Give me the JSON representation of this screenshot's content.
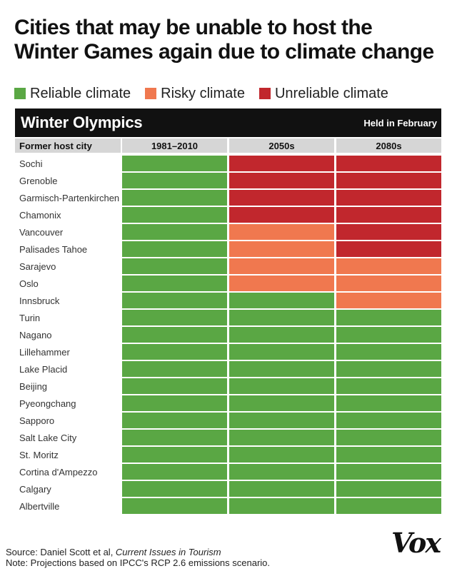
{
  "title_line1": "Cities that may be unable to host the",
  "title_line2": "Winter Games again due to climate change",
  "legend": [
    {
      "label": "Reliable climate",
      "color": "#5aa744"
    },
    {
      "label": "Risky climate",
      "color": "#f0784f"
    },
    {
      "label": "Unreliable climate",
      "color": "#c1272d"
    }
  ],
  "header": {
    "title": "Winter Olympics",
    "note": "Held in February"
  },
  "source_prefix": "Source: Daniel Scott et al, ",
  "source_journal": "Current Issues in Tourism",
  "note": "Note: Projections based on IPCC's RCP 2.6 emissions scenario.",
  "logo": "Vox",
  "chart_data": {
    "type": "heatmap",
    "row_header": "Former host city",
    "columns": [
      "1981–2010",
      "2050s",
      "2080s"
    ],
    "categories": {
      "R": "Reliable climate",
      "K": "Risky climate",
      "U": "Unreliable climate"
    },
    "colors": {
      "R": "#5aa744",
      "K": "#f0784f",
      "U": "#c1272d"
    },
    "rows": [
      {
        "city": "Sochi",
        "values": [
          "R",
          "U",
          "U"
        ]
      },
      {
        "city": "Grenoble",
        "values": [
          "R",
          "U",
          "U"
        ]
      },
      {
        "city": "Garmisch-Partenkirchen",
        "values": [
          "R",
          "U",
          "U"
        ]
      },
      {
        "city": "Chamonix",
        "values": [
          "R",
          "U",
          "U"
        ]
      },
      {
        "city": "Vancouver",
        "values": [
          "R",
          "K",
          "U"
        ]
      },
      {
        "city": "Palisades Tahoe",
        "values": [
          "R",
          "K",
          "U"
        ]
      },
      {
        "city": "Sarajevo",
        "values": [
          "R",
          "K",
          "K"
        ]
      },
      {
        "city": "Oslo",
        "values": [
          "R",
          "K",
          "K"
        ]
      },
      {
        "city": "Innsbruck",
        "values": [
          "R",
          "R",
          "K"
        ]
      },
      {
        "city": "Turin",
        "values": [
          "R",
          "R",
          "R"
        ]
      },
      {
        "city": "Nagano",
        "values": [
          "R",
          "R",
          "R"
        ]
      },
      {
        "city": "Lillehammer",
        "values": [
          "R",
          "R",
          "R"
        ]
      },
      {
        "city": "Lake Placid",
        "values": [
          "R",
          "R",
          "R"
        ]
      },
      {
        "city": "Beijing",
        "values": [
          "R",
          "R",
          "R"
        ]
      },
      {
        "city": "Pyeongchang",
        "values": [
          "R",
          "R",
          "R"
        ]
      },
      {
        "city": "Sapporo",
        "values": [
          "R",
          "R",
          "R"
        ]
      },
      {
        "city": "Salt Lake City",
        "values": [
          "R",
          "R",
          "R"
        ]
      },
      {
        "city": "St. Moritz",
        "values": [
          "R",
          "R",
          "R"
        ]
      },
      {
        "city": "Cortina d'Ampezzo",
        "values": [
          "R",
          "R",
          "R"
        ]
      },
      {
        "city": "Calgary",
        "values": [
          "R",
          "R",
          "R"
        ]
      },
      {
        "city": "Albertville",
        "values": [
          "R",
          "R",
          "R"
        ]
      }
    ]
  }
}
